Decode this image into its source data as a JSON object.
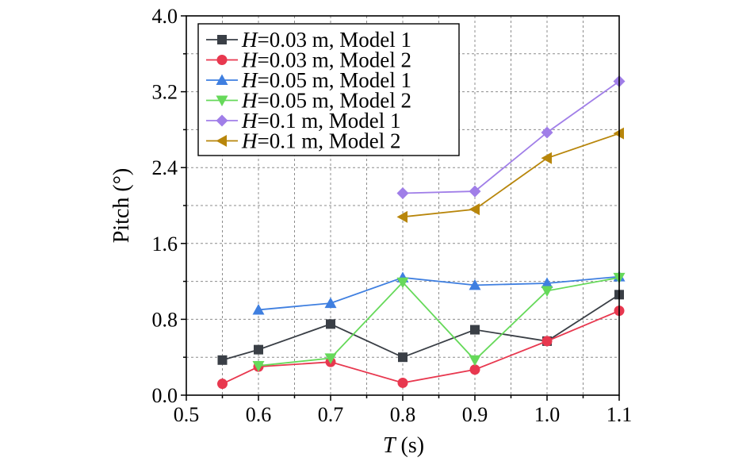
{
  "chart_data": {
    "type": "line",
    "xlabel": {
      "italic": "T",
      "rest": " (s)"
    },
    "ylabel": "Pitch (°)",
    "xlim": [
      0.5,
      1.1
    ],
    "ylim": [
      0.0,
      4.0
    ],
    "xticks": [
      "0.5",
      "0.6",
      "0.7",
      "0.8",
      "0.9",
      "1.0",
      "1.1"
    ],
    "yticks": [
      "0.0",
      "0.8",
      "1.6",
      "2.4",
      "3.2",
      "4.0"
    ],
    "grid": true,
    "legend_position": "top-left",
    "series": [
      {
        "name": "H=0.03 m, Model 1",
        "legend_italic": "H",
        "legend_rest": "=0.03 m, Model 1",
        "color": "#3a3f46",
        "marker": "square",
        "x": [
          0.55,
          0.6,
          0.7,
          0.8,
          0.9,
          1.0,
          1.1
        ],
        "y": [
          0.37,
          0.48,
          0.75,
          0.4,
          0.69,
          0.57,
          1.06
        ]
      },
      {
        "name": "H=0.03 m, Model 2",
        "legend_italic": "H",
        "legend_rest": "=0.03 m, Model 2",
        "color": "#e8384f",
        "marker": "circle",
        "x": [
          0.55,
          0.6,
          0.7,
          0.8,
          0.9,
          1.0,
          1.1
        ],
        "y": [
          0.12,
          0.3,
          0.35,
          0.13,
          0.27,
          0.57,
          0.89
        ]
      },
      {
        "name": "H=0.05 m, Model 1",
        "legend_italic": "H",
        "legend_rest": "=0.05 m, Model 1",
        "color": "#3f7fe0",
        "marker": "triangle-up",
        "x": [
          0.6,
          0.7,
          0.8,
          0.9,
          1.0,
          1.1
        ],
        "y": [
          0.9,
          0.97,
          1.24,
          1.16,
          1.18,
          1.25
        ]
      },
      {
        "name": "H=0.05 m, Model 2",
        "legend_italic": "H",
        "legend_rest": "=0.05 m, Model 2",
        "color": "#66d95a",
        "marker": "triangle-down",
        "x": [
          0.6,
          0.7,
          0.8,
          0.9,
          1.0,
          1.1
        ],
        "y": [
          0.31,
          0.39,
          1.19,
          0.37,
          1.1,
          1.24
        ]
      },
      {
        "name": "H=0.1 m, Model 1",
        "legend_italic": "H",
        "legend_rest": "=0.1 m, Model 1",
        "color": "#a07ee8",
        "marker": "diamond",
        "x": [
          0.8,
          0.9,
          1.0,
          1.1
        ],
        "y": [
          2.13,
          2.15,
          2.77,
          3.31
        ]
      },
      {
        "name": "H=0.1 m, Model 2",
        "legend_italic": "H",
        "legend_rest": "=0.1 m, Model 2",
        "color": "#b8860b",
        "marker": "triangle-left",
        "x": [
          0.8,
          0.9,
          1.0,
          1.1
        ],
        "y": [
          1.88,
          1.96,
          2.5,
          2.76
        ]
      }
    ]
  }
}
